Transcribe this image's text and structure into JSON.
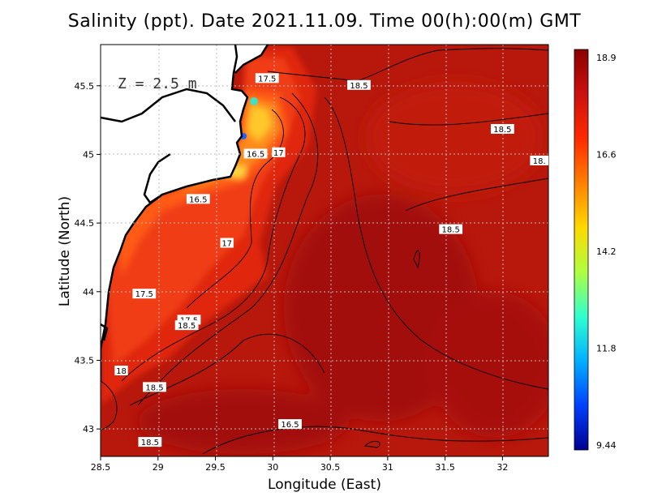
{
  "title": "Salinity (ppt). Date 2021.11.09. Time 00(h):00(m) GMT",
  "xlabel": "Longitude (East)",
  "ylabel": "Latitude (North)",
  "depth_label": "Z = 2.5 m",
  "chart_data": {
    "type": "heatmap",
    "variable": "Salinity (ppt)",
    "xlim": [
      28.5,
      32.4
    ],
    "ylim": [
      42.8,
      45.8
    ],
    "x_ticks": [
      "28.5",
      "29",
      "29.5",
      "30",
      "30.5",
      "31",
      "31.5",
      "32"
    ],
    "y_ticks": [
      "43",
      "43.5",
      "44",
      "44.5",
      "45",
      "45.5"
    ],
    "grid": true,
    "colorbar": {
      "labels": [
        "18.9",
        "16.6",
        "14.2",
        "11.8",
        "9.44"
      ],
      "min": 9.44,
      "max": 18.9,
      "colors": [
        "#8b0000",
        "#cc1010",
        "#ff2a00",
        "#ff8000",
        "#ffd800",
        "#b0ff40",
        "#30ffd0",
        "#00b0ff",
        "#0040ff",
        "#000090"
      ]
    },
    "contour_labels": [
      {
        "text": "17.5",
        "lon": 29.95,
        "lat": 45.55
      },
      {
        "text": "18.5",
        "lon": 30.75,
        "lat": 45.5
      },
      {
        "text": "18.5",
        "lon": 32.0,
        "lat": 45.18
      },
      {
        "text": "18.",
        "lon": 32.32,
        "lat": 44.95
      },
      {
        "text": "16.5",
        "lon": 29.85,
        "lat": 45.0
      },
      {
        "text": "17",
        "lon": 30.05,
        "lat": 45.01
      },
      {
        "text": "16.5",
        "lon": 29.35,
        "lat": 44.67
      },
      {
        "text": "18.5",
        "lon": 31.55,
        "lat": 44.45
      },
      {
        "text": "17",
        "lon": 29.6,
        "lat": 44.35
      },
      {
        "text": "17.5",
        "lon": 28.88,
        "lat": 43.98
      },
      {
        "text": "17.5",
        "lon": 29.27,
        "lat": 43.79
      },
      {
        "text": "18.5",
        "lon": 29.25,
        "lat": 43.75
      },
      {
        "text": "18",
        "lon": 28.68,
        "lat": 43.42
      },
      {
        "text": "18.5",
        "lon": 28.97,
        "lat": 43.3
      },
      {
        "text": "16.5",
        "lon": 30.15,
        "lat": 43.03
      },
      {
        "text": "18.5",
        "lon": 28.93,
        "lat": 42.9
      }
    ]
  }
}
